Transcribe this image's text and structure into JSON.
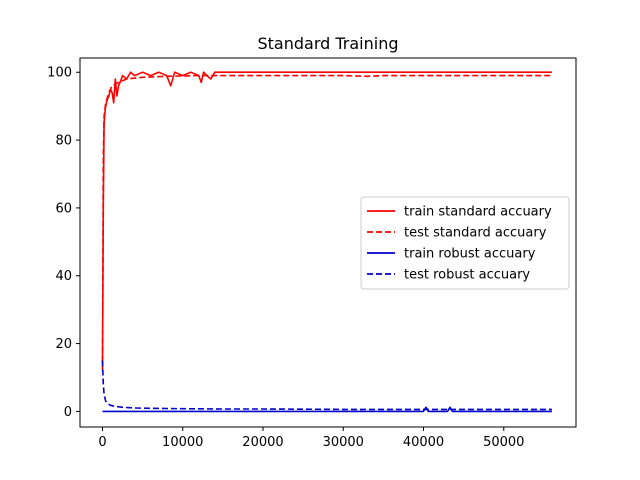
{
  "chart_data": {
    "type": "line",
    "title": "Standard Training",
    "xlabel": "",
    "ylabel": "",
    "xlim": [
      -2800,
      59000
    ],
    "ylim": [
      -4.6,
      104.2
    ],
    "xticks": [
      0,
      10000,
      20000,
      30000,
      40000,
      50000
    ],
    "xtick_labels": [
      "0",
      "10000",
      "20000",
      "30000",
      "40000",
      "50000"
    ],
    "yticks": [
      0,
      20,
      40,
      60,
      80,
      100
    ],
    "ytick_labels": [
      "0",
      "20",
      "40",
      "60",
      "80",
      "100"
    ],
    "grid": false,
    "legend_position": "center-right",
    "series": [
      {
        "name": "train standard accuary",
        "color": "#ff0000",
        "style": "solid",
        "x": [
          0,
          100,
          200,
          300,
          400,
          600,
          800,
          1000,
          1200,
          1400,
          1600,
          1800,
          2000,
          2200,
          2500,
          3000,
          3500,
          4000,
          5000,
          6000,
          7000,
          8000,
          8500,
          9000,
          10000,
          11000,
          12000,
          12300,
          12600,
          13000,
          13500,
          14000,
          16000,
          20000,
          25000,
          30000,
          33000,
          35000,
          40000,
          45000,
          50000,
          56000
        ],
        "y": [
          14,
          60,
          85,
          88,
          90,
          92,
          93,
          95,
          94,
          91,
          98,
          93,
          96,
          97,
          99,
          98,
          100,
          99,
          100,
          99,
          100,
          99,
          96,
          100,
          99,
          100,
          99,
          97,
          100,
          99,
          98,
          100,
          100,
          100,
          100,
          100,
          100,
          100,
          100,
          100,
          100,
          100
        ]
      },
      {
        "name": "test standard accuary",
        "color": "#ff0000",
        "style": "dashed",
        "x": [
          0,
          100,
          200,
          400,
          800,
          1200,
          2000,
          3000,
          5000,
          8000,
          12000,
          16000,
          20000,
          25000,
          30000,
          33000,
          35000,
          40000,
          45000,
          50000,
          56000
        ],
        "y": [
          12,
          75,
          87,
          91,
          94,
          96,
          97,
          98,
          98.5,
          98.8,
          99,
          99,
          99,
          99,
          99,
          98.8,
          99,
          99,
          99,
          99,
          99
        ]
      },
      {
        "name": "train robust accuary",
        "color": "#0000cc",
        "style": "solid",
        "x": [
          0,
          1000,
          10000,
          20000,
          30000,
          40000,
          40300,
          40600,
          43000,
          43300,
          43600,
          50000,
          56000
        ],
        "y": [
          0,
          0,
          0,
          0,
          0,
          0,
          1.2,
          0,
          0,
          1.2,
          0,
          0,
          0
        ]
      },
      {
        "name": "test robust accuary",
        "color": "#0000cc",
        "style": "dashed",
        "x": [
          0,
          100,
          200,
          400,
          700,
          1000,
          1500,
          2500,
          4000,
          6000,
          10000,
          15000,
          20000,
          30000,
          40000,
          50000,
          56000
        ],
        "y": [
          15,
          8,
          5,
          3,
          2.2,
          1.8,
          1.5,
          1.2,
          1,
          0.9,
          0.8,
          0.7,
          0.7,
          0.6,
          0.6,
          0.6,
          0.6
        ]
      }
    ]
  }
}
